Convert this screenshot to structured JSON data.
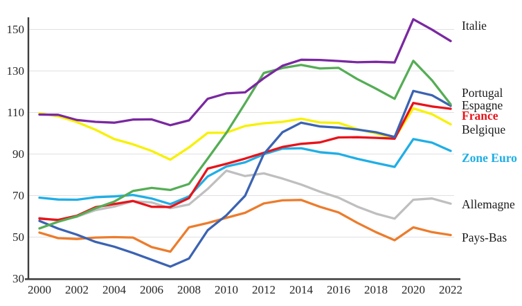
{
  "chart_data": {
    "type": "line",
    "title": "",
    "xlabel": "",
    "ylabel": "",
    "grid": "horizontal-light",
    "legend_position": "right-inline-labels",
    "grid_color": "#E0E0E0",
    "axis_color": "#3D3D3D",
    "text_color": "#262626",
    "ylim": [
      30,
      157
    ],
    "x": [
      2000,
      2001,
      2002,
      2003,
      2004,
      2005,
      2006,
      2007,
      2008,
      2009,
      2010,
      2011,
      2012,
      2013,
      2014,
      2015,
      2016,
      2017,
      2018,
      2019,
      2020,
      2021,
      2022
    ],
    "x_ticks": [
      "2000",
      "2002",
      "2004",
      "2006",
      "2008",
      "2010",
      "2012",
      "2014",
      "2016",
      "2018",
      "2020",
      "2022"
    ],
    "y_ticks": [
      30,
      50,
      70,
      90,
      110,
      130,
      150
    ],
    "series": [
      {
        "name": "Italie",
        "color": "#7A28A0",
        "label_color": "#1A1A1A",
        "label_bold": false,
        "values": [
          109.0,
          108.9,
          106.4,
          105.5,
          105.1,
          106.6,
          106.7,
          103.9,
          106.2,
          116.6,
          119.2,
          119.7,
          126.5,
          132.5,
          135.4,
          135.3,
          134.8,
          134.2,
          134.4,
          134.1,
          154.9,
          149.9,
          144.4
        ]
      },
      {
        "name": "Portugal",
        "color": "#55AD55",
        "label_color": "#1A1A1A",
        "label_bold": false,
        "values": [
          54.2,
          57.4,
          60.0,
          63.9,
          67.1,
          72.2,
          73.7,
          72.7,
          75.6,
          87.8,
          100.2,
          114.4,
          129.0,
          131.4,
          132.9,
          131.2,
          131.5,
          126.1,
          121.5,
          116.6,
          134.9,
          125.5,
          113.9
        ]
      },
      {
        "name": "Espagne",
        "color": "#3B63B2",
        "label_color": "#1A1A1A",
        "label_bold": false,
        "values": [
          57.8,
          54.1,
          51.2,
          47.7,
          45.4,
          42.4,
          39.1,
          35.8,
          39.7,
          53.3,
          60.5,
          69.9,
          90.0,
          100.5,
          105.1,
          103.3,
          102.7,
          101.8,
          100.5,
          98.2,
          120.4,
          118.3,
          113.2
        ]
      },
      {
        "name": "France",
        "color": "#E8131A",
        "label_color": "#E8131A",
        "label_bold": true,
        "values": [
          58.9,
          58.3,
          60.3,
          64.4,
          65.9,
          67.4,
          64.6,
          64.5,
          68.8,
          83.0,
          85.3,
          87.8,
          90.6,
          93.4,
          94.9,
          95.6,
          98.0,
          98.1,
          97.8,
          97.4,
          114.6,
          112.9,
          111.8
        ]
      },
      {
        "name": "Belgique",
        "color": "#F7F100",
        "label_color": "#1A1A1A",
        "label_bold": false,
        "values": [
          109.6,
          108.2,
          105.4,
          101.7,
          97.2,
          94.7,
          91.5,
          87.3,
          93.2,
          100.2,
          100.3,
          103.5,
          104.8,
          105.5,
          107.0,
          105.2,
          105.0,
          102.0,
          99.9,
          97.6,
          112.0,
          109.2,
          104.3
        ]
      },
      {
        "name": "Zone Euro",
        "color": "#20AEE6",
        "label_color": "#20AEE6",
        "label_bold": true,
        "values": [
          69.0,
          68.1,
          68.0,
          69.2,
          69.6,
          70.3,
          68.6,
          65.9,
          69.6,
          79.2,
          84.0,
          86.0,
          89.9,
          92.6,
          92.8,
          90.9,
          90.1,
          87.7,
          85.7,
          83.8,
          97.2,
          95.5,
          91.5
        ]
      },
      {
        "name": "Allemagne",
        "color": "#BFBFBF",
        "label_color": "#1A1A1A",
        "label_bold": false,
        "values": [
          59.3,
          57.9,
          59.8,
          63.0,
          64.7,
          67.3,
          66.7,
          63.9,
          65.7,
          73.2,
          82.0,
          79.4,
          80.7,
          78.2,
          75.3,
          71.9,
          69.0,
          64.7,
          61.3,
          58.9,
          68.0,
          68.6,
          66.1
        ]
      },
      {
        "name": "Pays-Bas",
        "color": "#EC7C2C",
        "label_color": "#1A1A1A",
        "label_bold": false,
        "values": [
          52.2,
          49.5,
          49.1,
          49.8,
          50.0,
          49.8,
          45.2,
          43.0,
          54.7,
          56.8,
          59.3,
          61.7,
          66.2,
          67.7,
          67.9,
          64.6,
          61.9,
          56.9,
          52.4,
          48.5,
          54.7,
          52.4,
          51.0
        ]
      }
    ]
  }
}
